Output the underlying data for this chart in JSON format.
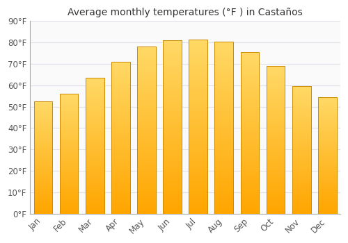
{
  "title": "Average monthly temperatures (°F ) in Castaños",
  "months": [
    "Jan",
    "Feb",
    "Mar",
    "Apr",
    "May",
    "Jun",
    "Jul",
    "Aug",
    "Sep",
    "Oct",
    "Nov",
    "Dec"
  ],
  "values": [
    52.5,
    56.0,
    63.5,
    71.0,
    78.0,
    81.0,
    81.5,
    80.5,
    75.5,
    69.0,
    59.5,
    54.5
  ],
  "bar_color_top": "#FFD966",
  "bar_color_bottom": "#FFA500",
  "bar_edge_color": "#CC8800",
  "background_color": "#FFFFFF",
  "plot_bg_color": "#FAFAFA",
  "grid_color": "#E0E0E8",
  "ylim": [
    0,
    90
  ],
  "yticks": [
    0,
    10,
    20,
    30,
    40,
    50,
    60,
    70,
    80,
    90
  ],
  "title_fontsize": 10,
  "tick_fontsize": 8.5,
  "figsize": [
    5.0,
    3.5
  ],
  "dpi": 100
}
